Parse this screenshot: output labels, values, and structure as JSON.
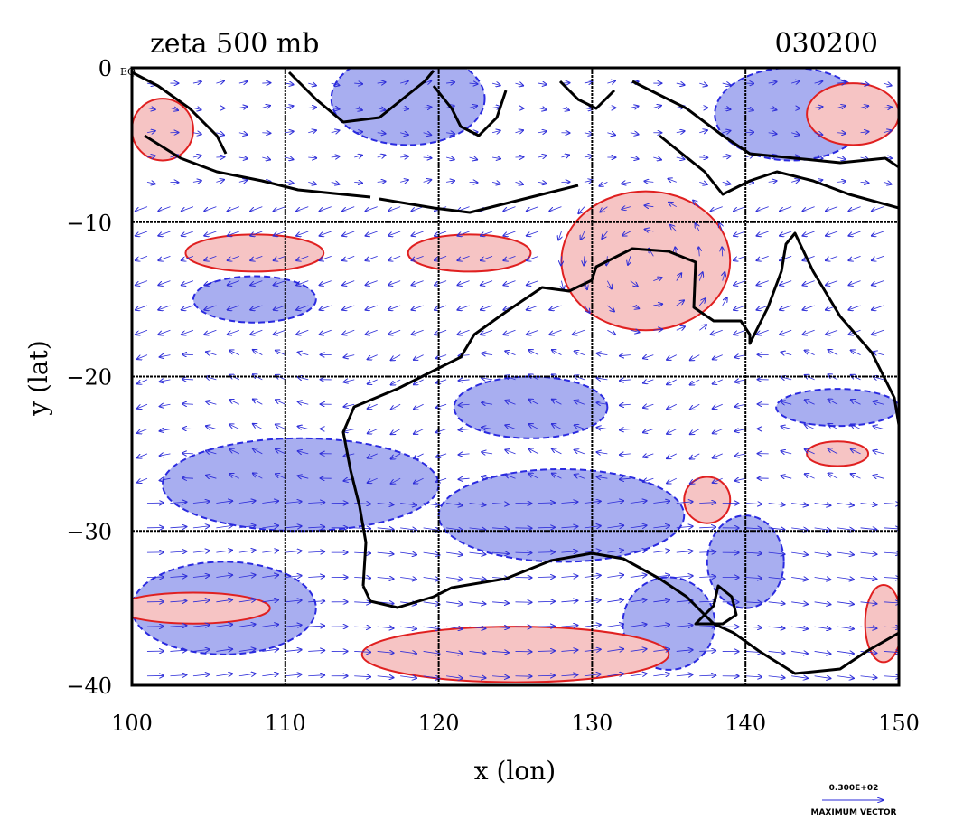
{
  "chart_data": {
    "type": "contour",
    "title": "zeta 500 mb",
    "date_label": "030200",
    "xlabel": "x (lon)",
    "ylabel": "y (lat)",
    "xlim": [
      100,
      150
    ],
    "ylim": [
      -40,
      0
    ],
    "x_ticks": [
      100,
      110,
      120,
      130,
      140,
      150
    ],
    "x_tick_labels": [
      "100",
      "110",
      "120",
      "130",
      "140",
      "150"
    ],
    "y_ticks": [
      0,
      -10,
      -20,
      -30,
      -40
    ],
    "y_tick_labels": [
      "0",
      "−10",
      "−20",
      "−30",
      "−40"
    ],
    "equator_label": "EQ",
    "grid": true,
    "grid_x": [
      110,
      120,
      130,
      140
    ],
    "grid_y": [
      -10,
      -20,
      -30
    ],
    "colors": {
      "positive": "#e02020",
      "positive_fill": "#f6c4c4",
      "negative": "#2a2ae0",
      "negative_fill": "#a8aef0",
      "vector": "#2b2bd8",
      "coast": "#000000"
    },
    "max_vector_value": "0.300E+02",
    "max_vector_caption": "MAXIMUM VECTOR",
    "positive_regions": [
      {
        "lon": 133.5,
        "lat": -12.5,
        "rx": 5.5,
        "ry": 4.5
      },
      {
        "lon": 108,
        "lat": -12,
        "rx": 4.5,
        "ry": 1.2
      },
      {
        "lon": 104,
        "lat": -35,
        "rx": 5,
        "ry": 1.0
      },
      {
        "lon": 125,
        "lat": -38,
        "rx": 10,
        "ry": 1.8
      },
      {
        "lon": 122,
        "lat": -12,
        "rx": 4,
        "ry": 1.2
      },
      {
        "lon": 137.5,
        "lat": -28,
        "rx": 1.5,
        "ry": 1.5
      },
      {
        "lon": 146,
        "lat": -25,
        "rx": 2,
        "ry": 0.8
      },
      {
        "lon": 149,
        "lat": -36,
        "rx": 1.2,
        "ry": 2.5
      },
      {
        "lon": 102,
        "lat": -4,
        "rx": 2,
        "ry": 2
      },
      {
        "lon": 147,
        "lat": -3,
        "rx": 3,
        "ry": 2
      }
    ],
    "negative_regions": [
      {
        "lon": 111,
        "lat": -27,
        "rx": 9,
        "ry": 3
      },
      {
        "lon": 106,
        "lat": -35,
        "rx": 6,
        "ry": 3
      },
      {
        "lon": 128,
        "lat": -29,
        "rx": 8,
        "ry": 3
      },
      {
        "lon": 126,
        "lat": -22,
        "rx": 5,
        "ry": 2
      },
      {
        "lon": 135,
        "lat": -36,
        "rx": 3,
        "ry": 3
      },
      {
        "lon": 146,
        "lat": -22,
        "rx": 4,
        "ry": 1.2
      },
      {
        "lon": 140,
        "lat": -32,
        "rx": 2.5,
        "ry": 3
      },
      {
        "lon": 118,
        "lat": -2,
        "rx": 5,
        "ry": 3
      },
      {
        "lon": 143,
        "lat": -3,
        "rx": 5,
        "ry": 3
      },
      {
        "lon": 108,
        "lat": -15,
        "rx": 4,
        "ry": 1.5
      }
    ]
  }
}
